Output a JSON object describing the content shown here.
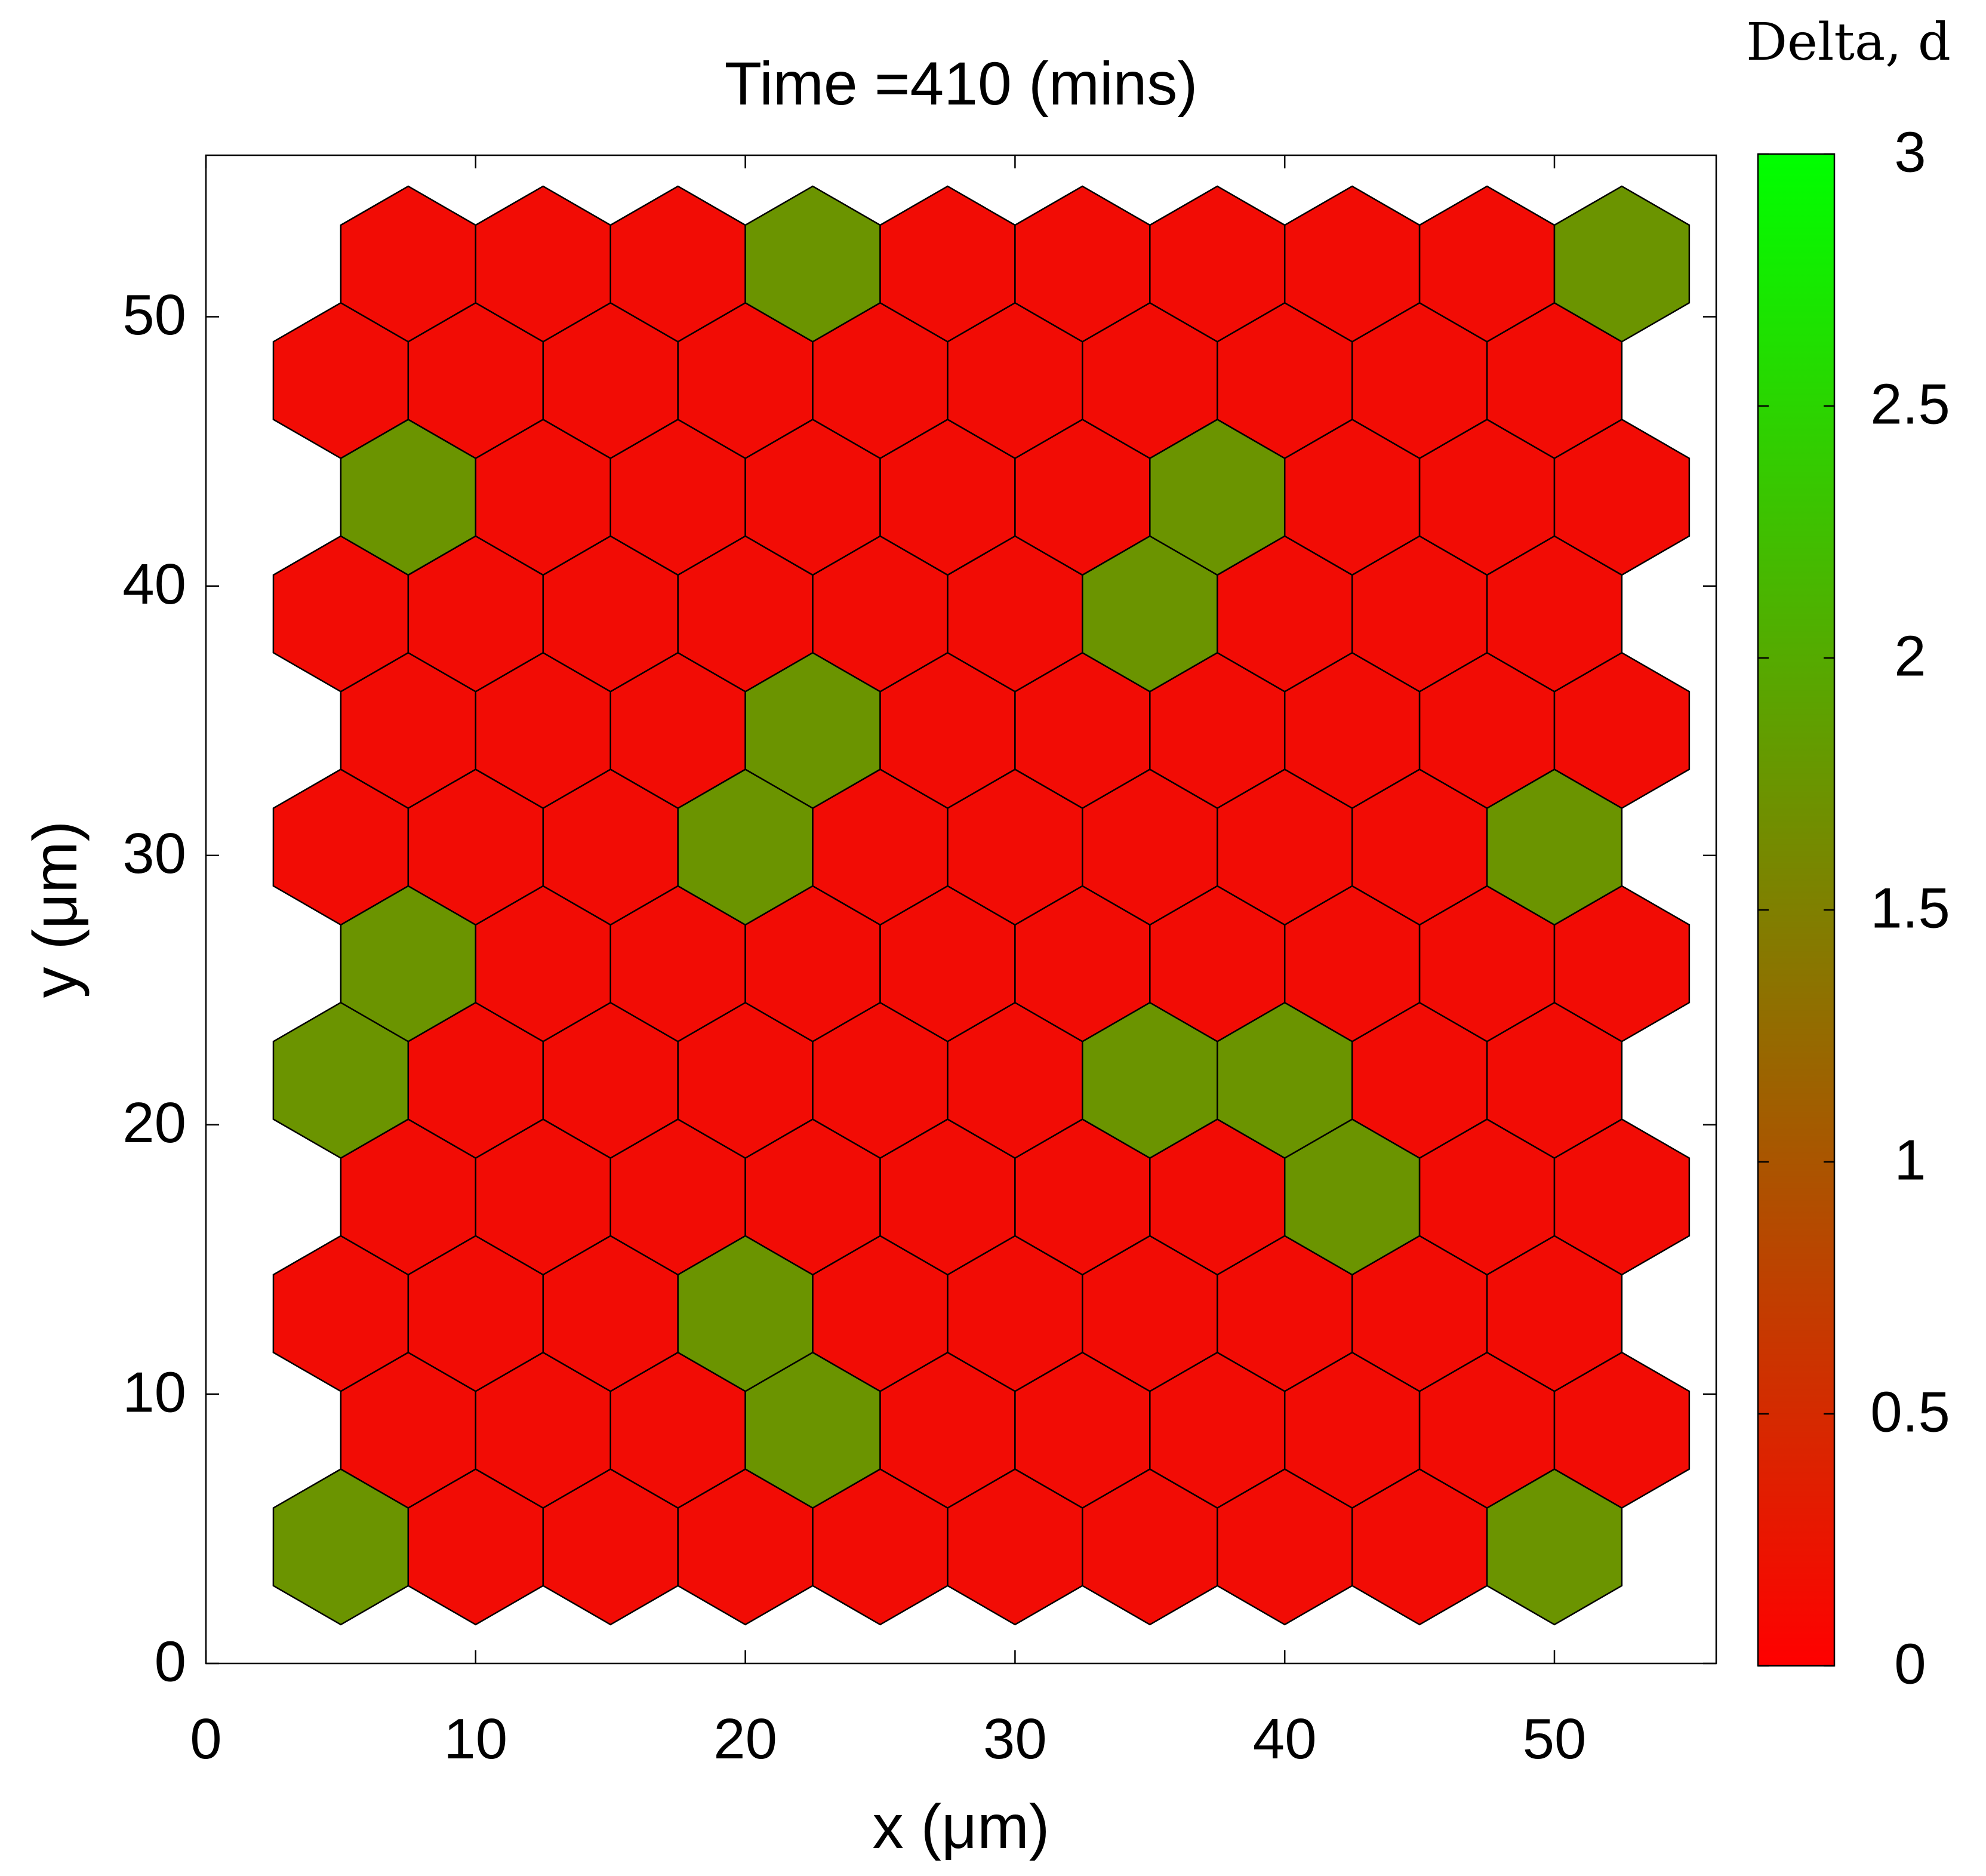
{
  "chart_data": {
    "type": "heatmap",
    "title": "Time =410 (mins)",
    "xlabel": "x (μm)",
    "ylabel": "y (μm)",
    "xlim": [
      0,
      56
    ],
    "ylim": [
      0,
      56
    ],
    "xticks": [
      "0",
      "10",
      "20",
      "30",
      "40",
      "50"
    ],
    "yticks": [
      "0",
      "10",
      "20",
      "30",
      "40",
      "50"
    ],
    "colorbar": {
      "title": "Delta, d",
      "range": [
        0,
        3
      ],
      "ticks": [
        "0",
        "0.5",
        "1",
        "1.5",
        "2",
        "2.5",
        "3"
      ],
      "colors": [
        "#ff0000",
        "#00ff00"
      ]
    },
    "lattice": "hexagonal",
    "cell_colors": {
      "low": "#f20c05",
      "high": "#6b9400"
    },
    "rows": [
      {
        "y": 4.33,
        "values": [
          1.75,
          0.1,
          0.1,
          0.1,
          0.1,
          0.1,
          0.1,
          0.1,
          0.1,
          1.75
        ]
      },
      {
        "y": 8.66,
        "values": [
          0.1,
          0.1,
          0.1,
          1.75,
          0.1,
          0.1,
          0.1,
          0.1,
          0.1,
          0.1
        ]
      },
      {
        "y": 12.99,
        "values": [
          0.1,
          0.1,
          0.1,
          1.75,
          0.1,
          0.1,
          0.1,
          0.1,
          0.1,
          0.1
        ]
      },
      {
        "y": 17.32,
        "values": [
          0.1,
          0.1,
          0.1,
          0.1,
          0.1,
          0.1,
          0.1,
          1.75,
          0.1,
          0.1
        ]
      },
      {
        "y": 21.65,
        "values": [
          1.75,
          0.1,
          0.1,
          0.1,
          0.1,
          0.1,
          1.75,
          1.75,
          0.1,
          0.1
        ]
      },
      {
        "y": 25.98,
        "values": [
          1.75,
          0.1,
          0.1,
          0.1,
          0.1,
          0.1,
          0.1,
          0.1,
          0.1,
          0.1
        ]
      },
      {
        "y": 30.31,
        "values": [
          0.1,
          0.1,
          0.1,
          1.75,
          0.1,
          0.1,
          0.1,
          0.1,
          0.1,
          1.75
        ]
      },
      {
        "y": 34.64,
        "values": [
          0.1,
          0.1,
          0.1,
          1.75,
          0.1,
          0.1,
          0.1,
          0.1,
          0.1,
          0.1
        ]
      },
      {
        "y": 38.97,
        "values": [
          0.1,
          0.1,
          0.1,
          0.1,
          0.1,
          0.1,
          1.75,
          0.1,
          0.1,
          0.1
        ]
      },
      {
        "y": 43.3,
        "values": [
          1.75,
          0.1,
          0.1,
          0.1,
          0.1,
          0.1,
          1.75,
          0.1,
          0.1,
          0.1
        ]
      },
      {
        "y": 47.63,
        "values": [
          0.1,
          0.1,
          0.1,
          0.1,
          0.1,
          0.1,
          0.1,
          0.1,
          0.1,
          0.1
        ]
      },
      {
        "y": 51.96,
        "values": [
          0.1,
          0.1,
          0.1,
          1.75,
          0.1,
          0.1,
          0.1,
          0.1,
          0.1,
          1.75
        ]
      }
    ],
    "row_x": {
      "even_rows": [
        5,
        10,
        15,
        20,
        25,
        30,
        35,
        40,
        45,
        50
      ],
      "odd_rows": [
        7.5,
        12.5,
        17.5,
        22.5,
        27.5,
        32.5,
        37.5,
        42.5,
        47.5,
        52.5
      ]
    },
    "grid": false,
    "legend": "colorbar-right"
  }
}
